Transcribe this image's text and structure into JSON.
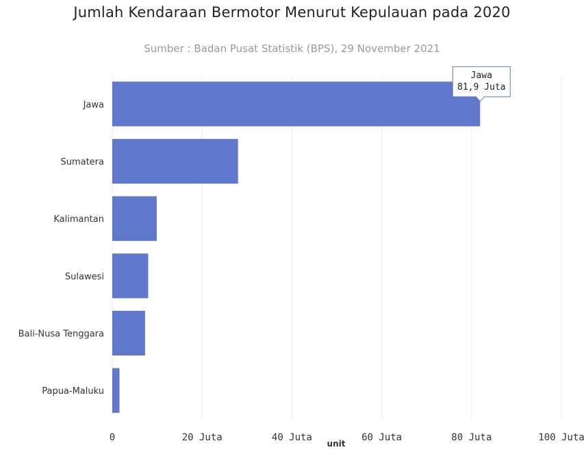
{
  "chart_data": {
    "type": "bar",
    "orientation": "horizontal",
    "title": "Jumlah Kendaraan Bermotor Menurut Kepulauan pada 2020",
    "subtitle": "Sumber : Badan Pusat Statistik (BPS), 29 November 2021",
    "categories": [
      "Jawa",
      "Sumatera",
      "Kalimantan",
      "Sulawesi",
      "Bali-Nusa Tenggara",
      "Papua-Maluku"
    ],
    "values": [
      81.9,
      28.0,
      9.9,
      8.0,
      7.3,
      1.6
    ],
    "xlabel": "unit",
    "xlim": [
      0,
      100
    ],
    "x_ticks": [
      0,
      20,
      40,
      60,
      80,
      100
    ],
    "x_tick_labels": [
      "0",
      "20 Juta",
      "40 Juta",
      "60 Juta",
      "80 Juta",
      "100 Juta"
    ],
    "grid": true,
    "bar_color": "#6078cc",
    "tooltip": {
      "category": "Jawa",
      "value_label": "81,9 Juta"
    }
  }
}
